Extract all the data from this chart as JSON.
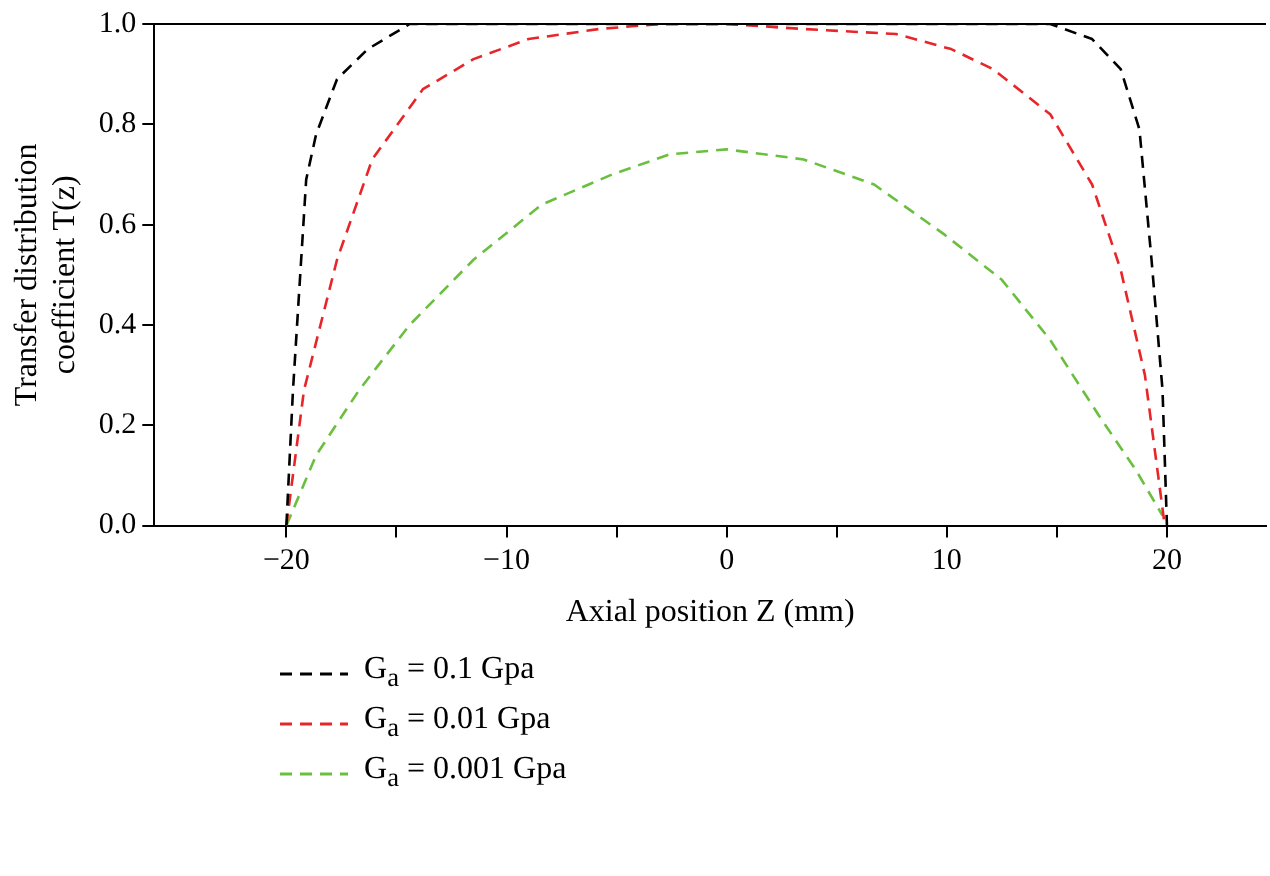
{
  "chart_data": {
    "type": "line",
    "xlabel": "Axial position Z (mm)",
    "ylabel": "Transfer distribution coefficient T(z)",
    "xlim": [
      -26,
      24.5
    ],
    "ylim": [
      0,
      1
    ],
    "xticks": [
      {
        "value": -20,
        "label": "−20"
      },
      {
        "value": -15,
        "label": null
      },
      {
        "value": -10,
        "label": "−10"
      },
      {
        "value": -5,
        "label": null
      },
      0,
      {
        "value": 5,
        "label": null
      },
      10,
      {
        "value": 15,
        "label": null
      },
      20
    ],
    "yticks": [
      {
        "value": 0,
        "label": "0.0"
      },
      0.2,
      0.4,
      0.6,
      0.8,
      {
        "value": 1,
        "label": "1.0"
      }
    ],
    "grid": false,
    "legend": "bottom left",
    "line_style": "dashed",
    "marker": "none",
    "series": [
      {
        "name": "G$_{a}$ = 0.1 Gpa",
        "color": "#000000",
        "x": [
          -20,
          -19.7,
          -19.1,
          -18.65,
          -17.7,
          -16.3,
          -14.4,
          0,
          14.7,
          16.6,
          17.9,
          18.75,
          19.3,
          19.8,
          20
        ],
        "values": [
          0,
          0.27,
          0.69,
          0.78,
          0.89,
          0.95,
          1.0,
          1.0,
          1.0,
          0.97,
          0.91,
          0.79,
          0.53,
          0.27,
          0
        ]
      },
      {
        "name": "G$_{a}$ = 0.01 Gpa",
        "color": "#e8262a",
        "x": [
          -20,
          -19.2,
          -17.7,
          -16.1,
          -13.8,
          -11.5,
          -9.0,
          -5.8,
          -3,
          0,
          3.5,
          7.7,
          10.2,
          12.1,
          14.7,
          16.6,
          17.9,
          19.0,
          19.9
        ],
        "values": [
          0,
          0.27,
          0.53,
          0.73,
          0.87,
          0.93,
          0.97,
          0.99,
          1.0,
          1.0,
          0.99,
          0.98,
          0.95,
          0.91,
          0.82,
          0.68,
          0.51,
          0.3,
          0
        ]
      },
      {
        "name": "G$_{a}$ = 0.001 Gpa",
        "color": "#6abf3f",
        "x": [
          -20,
          -18.65,
          -16.7,
          -14.4,
          -11.5,
          -8.4,
          -5.2,
          -2.6,
          0,
          3.5,
          6.7,
          9.9,
          12.5,
          14.7,
          16.9,
          18.6,
          19.8
        ],
        "values": [
          0,
          0.14,
          0.27,
          0.4,
          0.53,
          0.64,
          0.7,
          0.74,
          0.75,
          0.73,
          0.68,
          0.58,
          0.49,
          0.37,
          0.22,
          0.11,
          0.02
        ]
      }
    ]
  }
}
